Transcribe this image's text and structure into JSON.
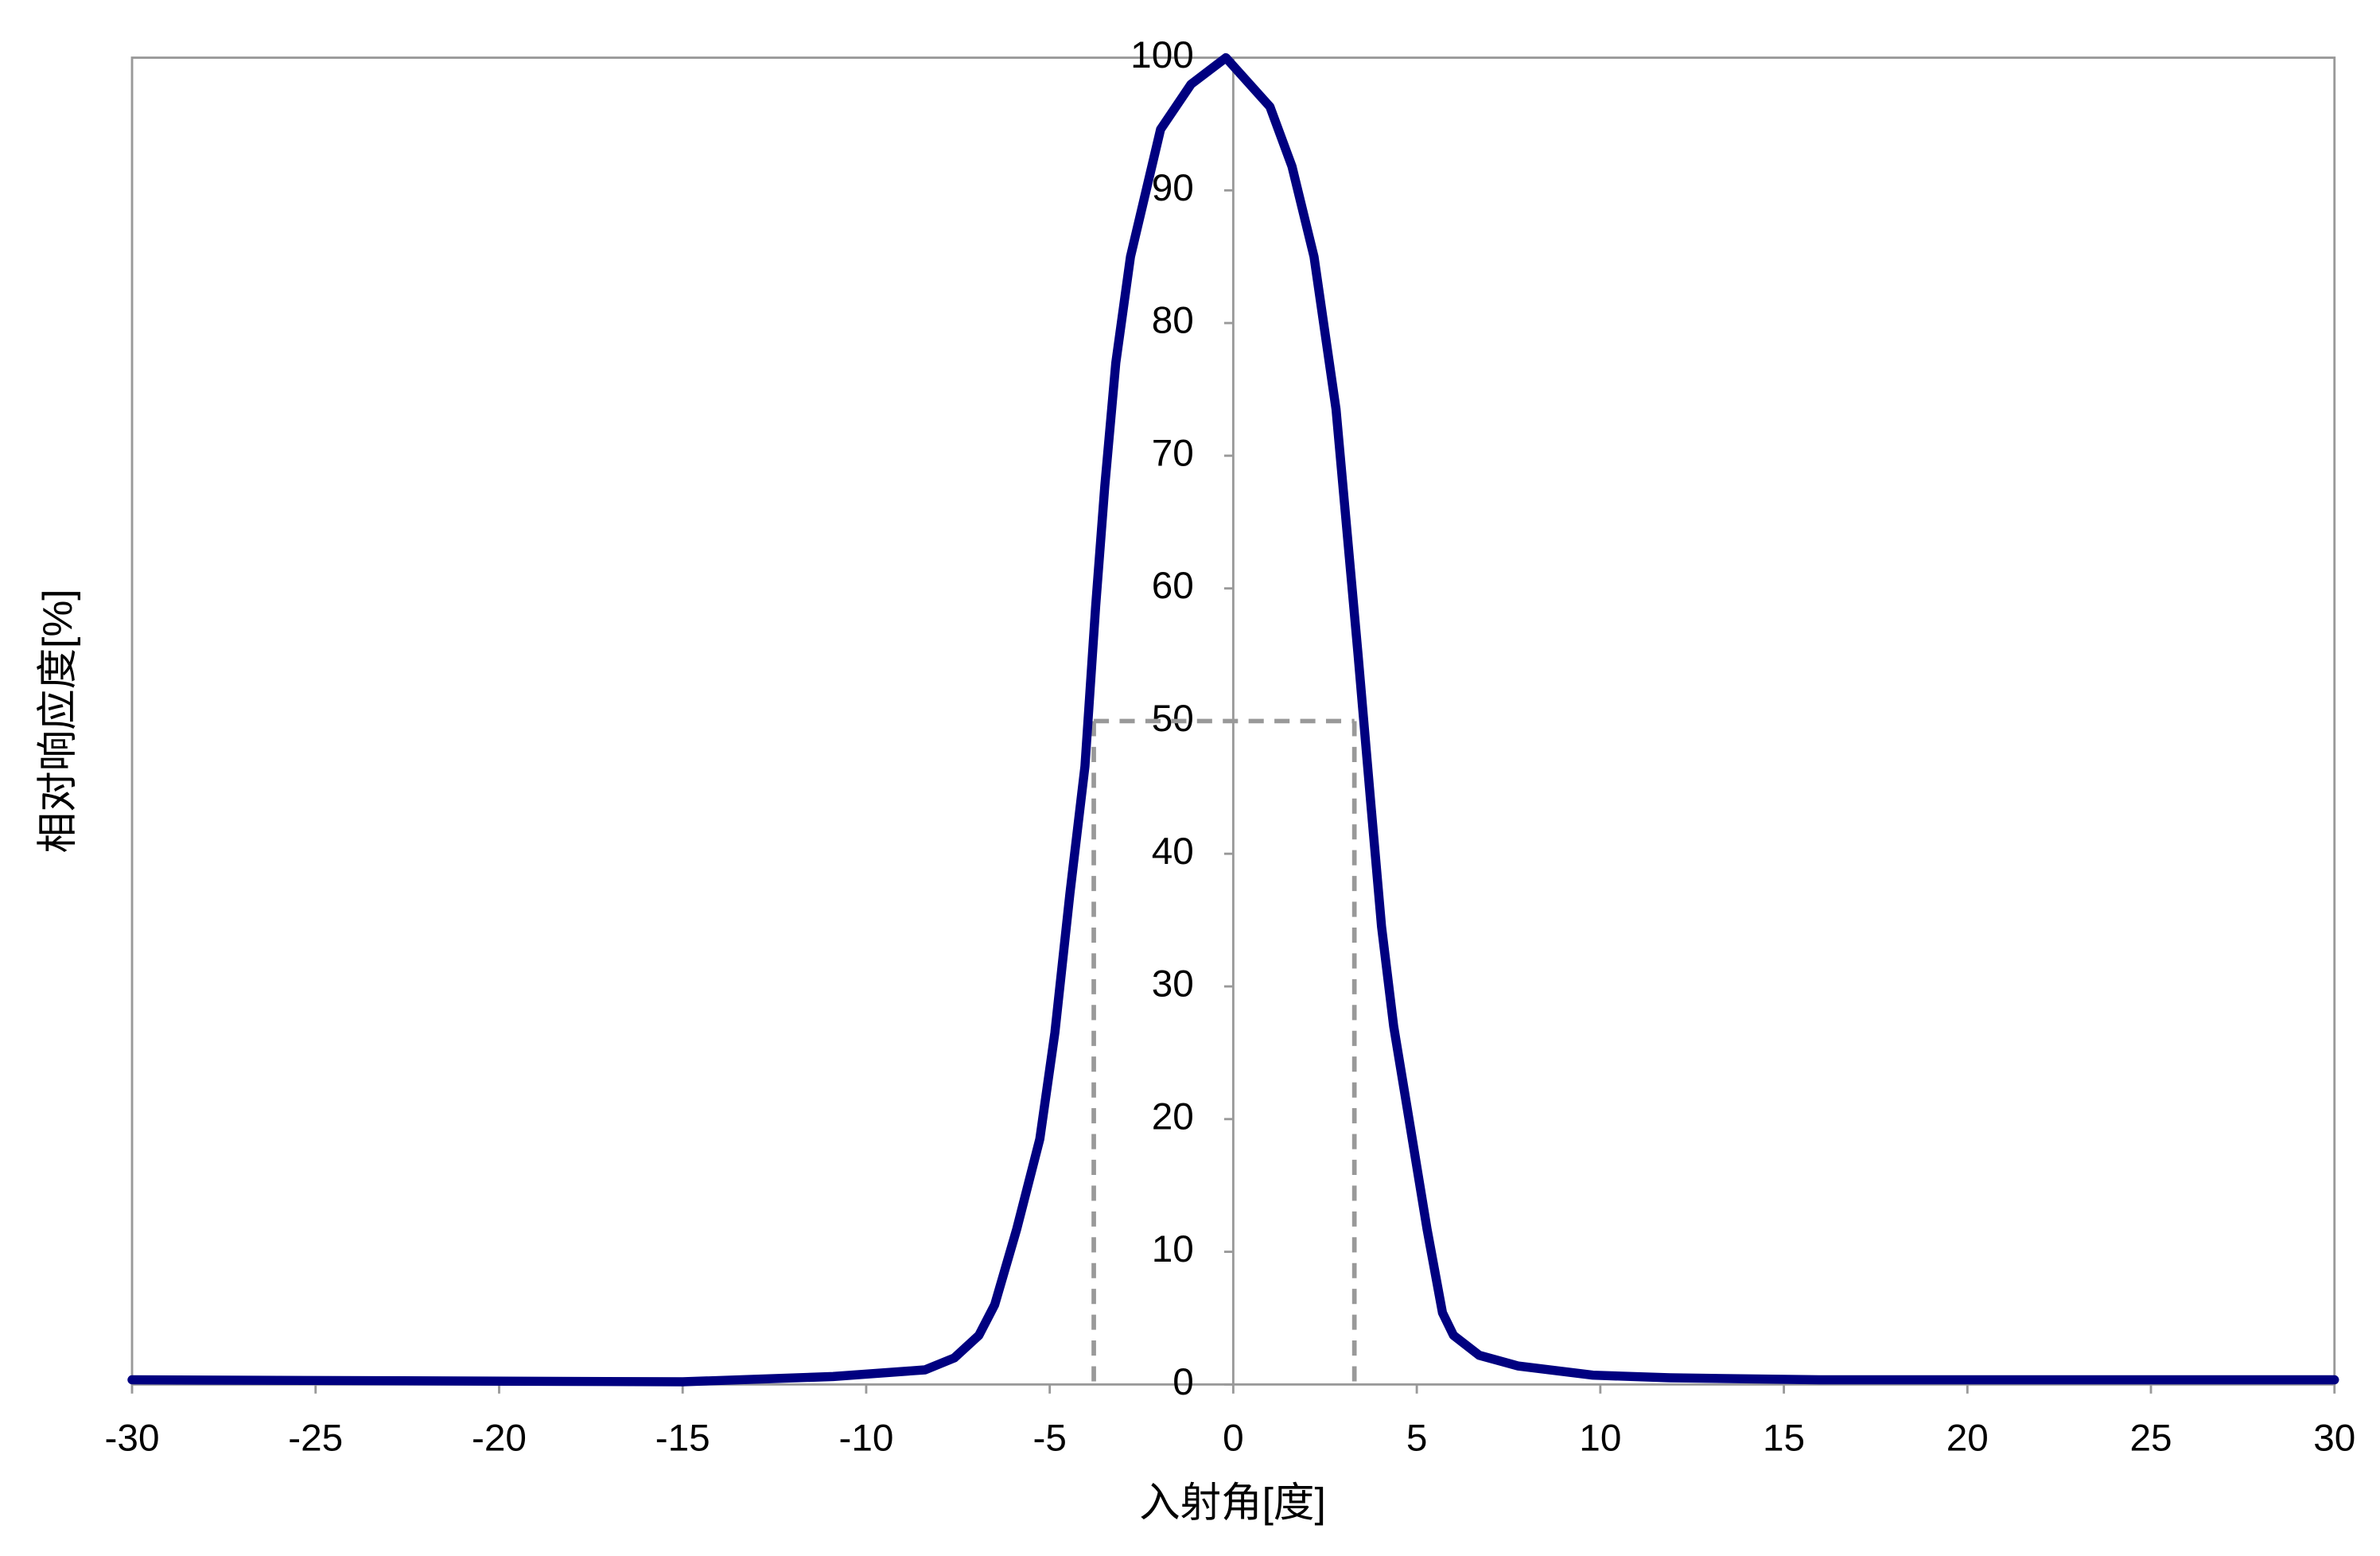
{
  "chart_data": {
    "type": "line",
    "x_label": "入射角[度]",
    "y_label": "相对响应度[%]",
    "x": [
      -30,
      -15,
      -10.9,
      -8.4,
      -7.6,
      -6.93,
      -6.5,
      -5.9,
      -5.27,
      -4.86,
      -4.45,
      -4.04,
      -3.75,
      -3.5,
      -3.2,
      -2.8,
      -1.98,
      -1.15,
      -0.2,
      1.0,
      1.6,
      2.2,
      2.8,
      3.4,
      3.75,
      4.04,
      4.37,
      4.74,
      5.28,
      5.7,
      6.0,
      6.7,
      7.75,
      9.8,
      11.9,
      16,
      30
    ],
    "series": [
      {
        "color": "#000080",
        "values": [
          0.35,
          0.2,
          0.6,
          1.1,
          2,
          3.7,
          6,
          11.7,
          18.5,
          26.5,
          37,
          46.6,
          58.6,
          67.7,
          77,
          85,
          94.6,
          98,
          100,
          96.3,
          91.8,
          85,
          73.5,
          55,
          43.7,
          34.5,
          27,
          20.8,
          11.7,
          5.4,
          3.7,
          2.2,
          1.4,
          0.7,
          0.5,
          0.35,
          0.35
        ]
      }
    ],
    "reference": {
      "x": [
        -3.8,
        3.3
      ],
      "y": 50,
      "color": "#999999"
    },
    "xlim": [
      -30,
      30
    ],
    "xticks": [
      -30,
      -25,
      -20,
      -15,
      -10,
      -5,
      0,
      5,
      10,
      15,
      20,
      25,
      30
    ],
    "ylim": [
      0,
      100
    ],
    "yticks": [
      0,
      10,
      20,
      30,
      40,
      50,
      60,
      70,
      80,
      90,
      100
    ]
  }
}
